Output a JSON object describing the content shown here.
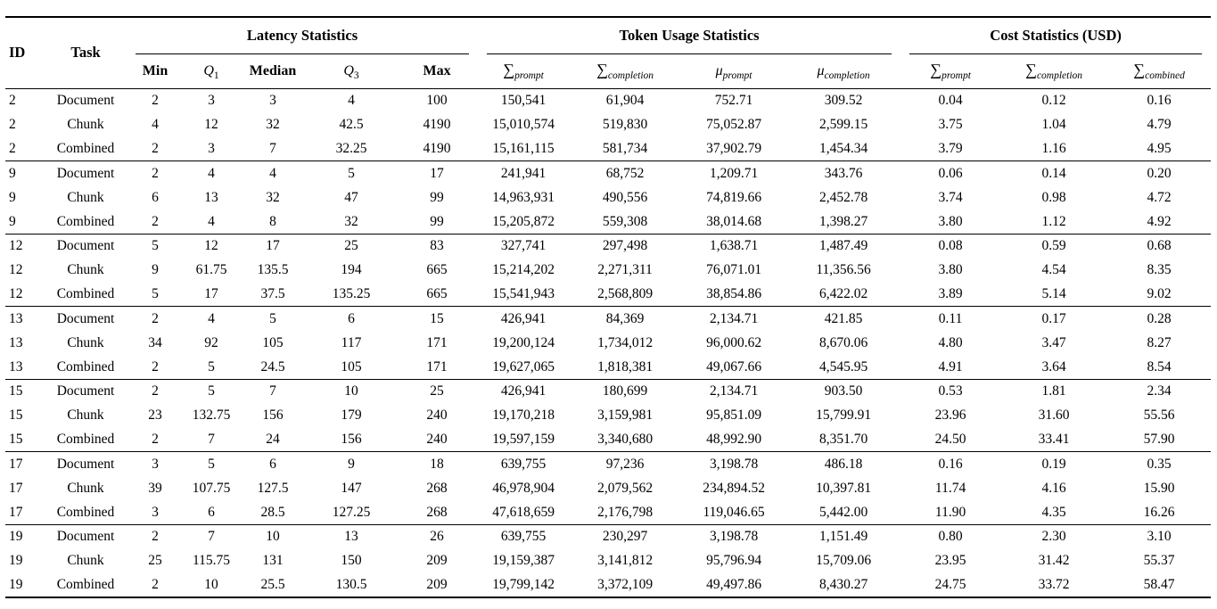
{
  "page": {
    "background": "#ffffff",
    "text_color": "#000000",
    "rule_color": "#000000"
  },
  "table": {
    "header": {
      "id": "ID",
      "task": "Task",
      "groups": [
        {
          "label": "Latency Statistics",
          "span": 5
        },
        {
          "label": "Token Usage Statistics",
          "span": 4
        },
        {
          "label": "Cost Statistics (USD)",
          "span": 3
        }
      ],
      "sub_headers": [
        {
          "text": "Min",
          "style": "bold"
        },
        {
          "text": "Q",
          "sub": "1",
          "style": "math"
        },
        {
          "text": "Median",
          "style": "bold"
        },
        {
          "text": "Q",
          "sub": "3",
          "style": "math"
        },
        {
          "text": "Max",
          "style": "bold"
        },
        {
          "text": "∑",
          "sub": "prompt",
          "style": "math"
        },
        {
          "text": "∑",
          "sub": "completion",
          "style": "math"
        },
        {
          "text": "μ",
          "sub": "prompt",
          "style": "math"
        },
        {
          "text": "μ",
          "sub": "completion",
          "style": "math"
        },
        {
          "text": "∑",
          "sub": "prompt",
          "style": "math"
        },
        {
          "text": "∑",
          "sub": "completion",
          "style": "math"
        },
        {
          "text": "∑",
          "sub": "combined",
          "style": "math"
        }
      ]
    },
    "rows": [
      [
        "2",
        "Document",
        "2",
        "3",
        "3",
        "4",
        "100",
        "150,541",
        "61,904",
        "752.71",
        "309.52",
        "0.04",
        "0.12",
        "0.16"
      ],
      [
        "2",
        "Chunk",
        "4",
        "12",
        "32",
        "42.5",
        "4190",
        "15,010,574",
        "519,830",
        "75,052.87",
        "2,599.15",
        "3.75",
        "1.04",
        "4.79"
      ],
      [
        "2",
        "Combined",
        "2",
        "3",
        "7",
        "32.25",
        "4190",
        "15,161,115",
        "581,734",
        "37,902.79",
        "1,454.34",
        "3.79",
        "1.16",
        "4.95"
      ],
      [
        "9",
        "Document",
        "2",
        "4",
        "4",
        "5",
        "17",
        "241,941",
        "68,752",
        "1,209.71",
        "343.76",
        "0.06",
        "0.14",
        "0.20"
      ],
      [
        "9",
        "Chunk",
        "6",
        "13",
        "32",
        "47",
        "99",
        "14,963,931",
        "490,556",
        "74,819.66",
        "2,452.78",
        "3.74",
        "0.98",
        "4.72"
      ],
      [
        "9",
        "Combined",
        "2",
        "4",
        "8",
        "32",
        "99",
        "15,205,872",
        "559,308",
        "38,014.68",
        "1,398.27",
        "3.80",
        "1.12",
        "4.92"
      ],
      [
        "12",
        "Document",
        "5",
        "12",
        "17",
        "25",
        "83",
        "327,741",
        "297,498",
        "1,638.71",
        "1,487.49",
        "0.08",
        "0.59",
        "0.68"
      ],
      [
        "12",
        "Chunk",
        "9",
        "61.75",
        "135.5",
        "194",
        "665",
        "15,214,202",
        "2,271,311",
        "76,071.01",
        "11,356.56",
        "3.80",
        "4.54",
        "8.35"
      ],
      [
        "12",
        "Combined",
        "5",
        "17",
        "37.5",
        "135.25",
        "665",
        "15,541,943",
        "2,568,809",
        "38,854.86",
        "6,422.02",
        "3.89",
        "5.14",
        "9.02"
      ],
      [
        "13",
        "Document",
        "2",
        "4",
        "5",
        "6",
        "15",
        "426,941",
        "84,369",
        "2,134.71",
        "421.85",
        "0.11",
        "0.17",
        "0.28"
      ],
      [
        "13",
        "Chunk",
        "34",
        "92",
        "105",
        "117",
        "171",
        "19,200,124",
        "1,734,012",
        "96,000.62",
        "8,670.06",
        "4.80",
        "3.47",
        "8.27"
      ],
      [
        "13",
        "Combined",
        "2",
        "5",
        "24.5",
        "105",
        "171",
        "19,627,065",
        "1,818,381",
        "49,067.66",
        "4,545.95",
        "4.91",
        "3.64",
        "8.54"
      ],
      [
        "15",
        "Document",
        "2",
        "5",
        "7",
        "10",
        "25",
        "426,941",
        "180,699",
        "2,134.71",
        "903.50",
        "0.53",
        "1.81",
        "2.34"
      ],
      [
        "15",
        "Chunk",
        "23",
        "132.75",
        "156",
        "179",
        "240",
        "19,170,218",
        "3,159,981",
        "95,851.09",
        "15,799.91",
        "23.96",
        "31.60",
        "55.56"
      ],
      [
        "15",
        "Combined",
        "2",
        "7",
        "24",
        "156",
        "240",
        "19,597,159",
        "3,340,680",
        "48,992.90",
        "8,351.70",
        "24.50",
        "33.41",
        "57.90"
      ],
      [
        "17",
        "Document",
        "3",
        "5",
        "6",
        "9",
        "18",
        "639,755",
        "97,236",
        "3,198.78",
        "486.18",
        "0.16",
        "0.19",
        "0.35"
      ],
      [
        "17",
        "Chunk",
        "39",
        "107.75",
        "127.5",
        "147",
        "268",
        "46,978,904",
        "2,079,562",
        "234,894.52",
        "10,397.81",
        "11.74",
        "4.16",
        "15.90"
      ],
      [
        "17",
        "Combined",
        "3",
        "6",
        "28.5",
        "127.25",
        "268",
        "47,618,659",
        "2,176,798",
        "119,046.65",
        "5,442.00",
        "11.90",
        "4.35",
        "16.26"
      ],
      [
        "19",
        "Document",
        "2",
        "7",
        "10",
        "13",
        "26",
        "639,755",
        "230,297",
        "3,198.78",
        "1,151.49",
        "0.80",
        "2.30",
        "3.10"
      ],
      [
        "19",
        "Chunk",
        "25",
        "115.75",
        "131",
        "150",
        "209",
        "19,159,387",
        "3,141,812",
        "95,796.94",
        "15,709.06",
        "23.95",
        "31.42",
        "55.37"
      ],
      [
        "19",
        "Combined",
        "2",
        "10",
        "25.5",
        "130.5",
        "209",
        "19,799,142",
        "3,372,109",
        "49,497.86",
        "8,430.27",
        "24.75",
        "33.72",
        "58.47"
      ]
    ],
    "group_breaks_after": [
      2,
      5,
      8,
      11,
      14,
      17
    ]
  }
}
